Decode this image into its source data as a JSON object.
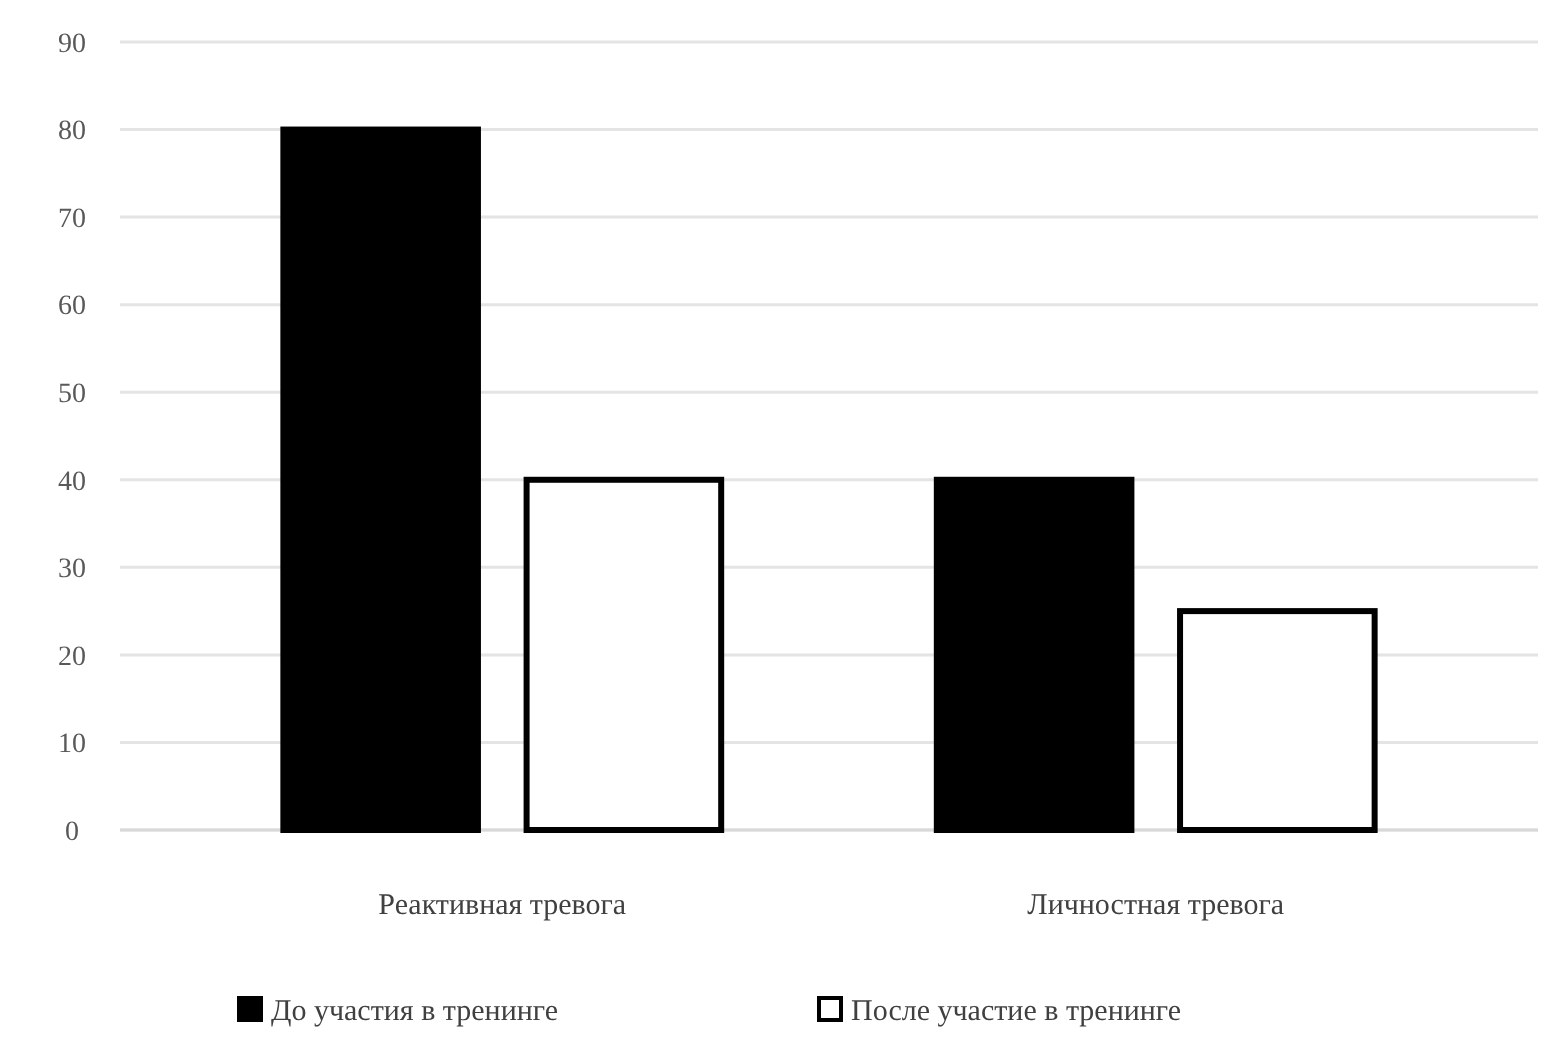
{
  "chart_data": {
    "type": "bar",
    "categories": [
      "Реактивная тревога",
      "Личностная тревога"
    ],
    "series": [
      {
        "name": "До участия в тренинге",
        "color": "#000000",
        "values": [
          80,
          40
        ]
      },
      {
        "name": "После участие в тренинге",
        "color": "#ffffff",
        "values": [
          40,
          25
        ]
      }
    ],
    "ylim": [
      0,
      90
    ],
    "yticks": [
      0,
      10,
      20,
      30,
      40,
      50,
      60,
      70,
      80,
      90
    ],
    "grid": "y",
    "legend": "bottom"
  }
}
